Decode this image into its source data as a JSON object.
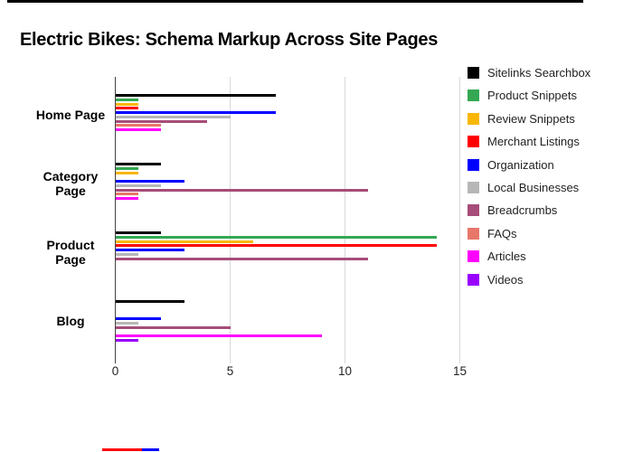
{
  "title": "Electric Bikes: Schema Markup Across Site Pages",
  "chart_data": {
    "type": "bar",
    "orientation": "horizontal",
    "title": "Electric Bikes: Schema Markup Across Site Pages",
    "categories": [
      "Home Page",
      "Category Page",
      "Product Page",
      "Blog"
    ],
    "series": [
      {
        "name": "Sitelinks Searchbox",
        "color": "#000000",
        "values": [
          7,
          2,
          2,
          3
        ]
      },
      {
        "name": "Product Snippets",
        "color": "#34A853",
        "values": [
          1,
          1,
          14,
          0
        ]
      },
      {
        "name": "Review Snippets",
        "color": "#F9B606",
        "values": [
          1,
          1,
          6,
          0
        ]
      },
      {
        "name": "Merchant Listings",
        "color": "#FF0000",
        "values": [
          1,
          0,
          14,
          0
        ]
      },
      {
        "name": "Organization",
        "color": "#0000FF",
        "values": [
          7,
          3,
          3,
          2
        ]
      },
      {
        "name": "Local Businesses",
        "color": "#B7B7B7",
        "values": [
          5,
          2,
          1,
          1
        ]
      },
      {
        "name": "Breadcrumbs",
        "color": "#A64D79",
        "values": [
          4,
          11,
          11,
          5
        ]
      },
      {
        "name": "FAQs",
        "color": "#E8776A",
        "values": [
          2,
          1,
          0,
          0
        ]
      },
      {
        "name": "Articles",
        "color": "#FF00FF",
        "values": [
          2,
          1,
          0,
          9
        ]
      },
      {
        "name": "Videos",
        "color": "#9900FF",
        "values": [
          0,
          0,
          0,
          1
        ]
      }
    ],
    "x_ticks": [
      0,
      5,
      10,
      15
    ],
    "xlim": [
      0,
      15.5
    ],
    "grid": true,
    "legend_position": "right",
    "axis_colors": {
      "zero_line": "#424242",
      "gridline": "#D9D9D9"
    }
  },
  "decorations": {
    "top_border_color": "#000000",
    "bottom_red_mark_color": "#FF0000",
    "bottom_blue_mark_color": "#0000FF"
  }
}
